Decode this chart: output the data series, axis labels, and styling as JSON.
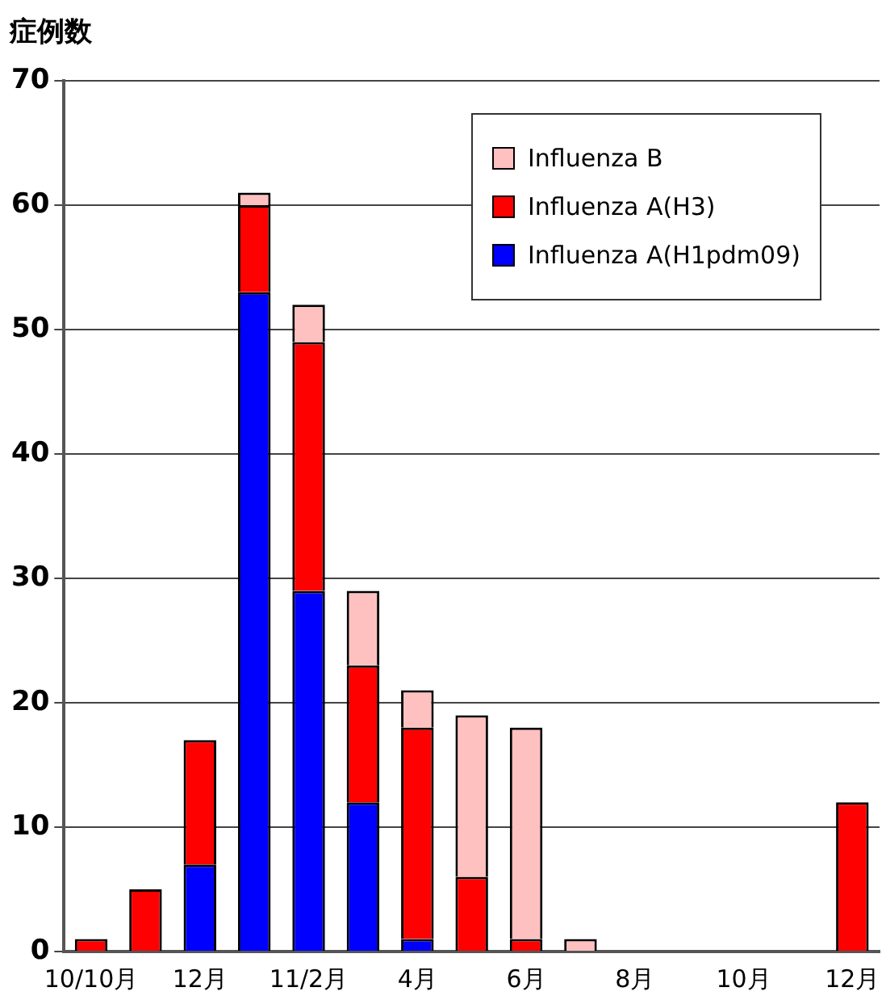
{
  "chart_data": {
    "type": "bar",
    "ylabel": "症例数",
    "stacked": true,
    "categories": [
      "10/10月",
      null,
      "12月",
      null,
      "11/2月",
      null,
      "4月",
      null,
      "6月",
      null,
      "8月",
      null,
      "10月",
      null,
      "12月"
    ],
    "series": [
      {
        "name": "Influenza A(H1pdm09)",
        "color": "#0000ff",
        "values": [
          0,
          0,
          7,
          53,
          29,
          12,
          1,
          0,
          0,
          0,
          0,
          0,
          0,
          0,
          0
        ]
      },
      {
        "name": "Influenza A(H3)",
        "color": "#ff0000",
        "values": [
          1,
          5,
          10,
          7,
          20,
          11,
          17,
          6,
          1,
          0,
          0,
          0,
          0,
          0,
          12
        ]
      },
      {
        "name": "Influenza B",
        "color": "#ffc0c0",
        "values": [
          0,
          0,
          0,
          1,
          3,
          6,
          3,
          13,
          17,
          1,
          0,
          0,
          0,
          0,
          0
        ]
      }
    ],
    "ylim": [
      0,
      70
    ],
    "yticks": [
      0,
      10,
      20,
      30,
      40,
      50,
      60,
      70
    ],
    "grid": "y",
    "legend": "top right"
  }
}
